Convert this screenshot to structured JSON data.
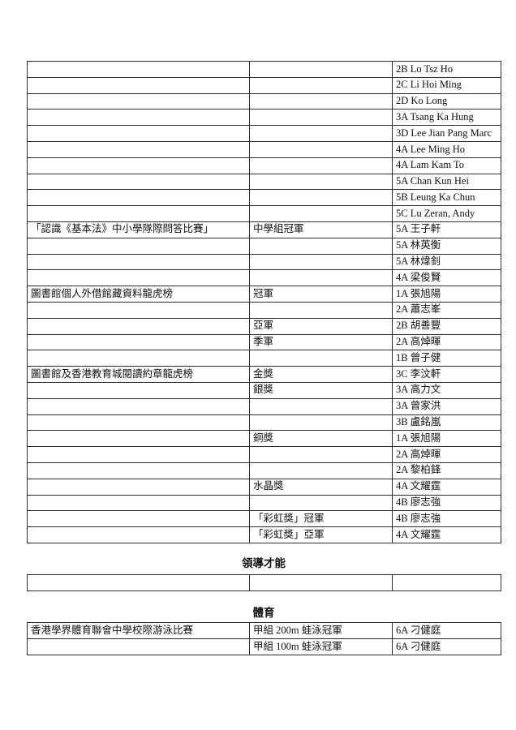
{
  "awards_table": {
    "rows": [
      {
        "activity": "",
        "award": "",
        "student": "2B Lo Tsz Ho"
      },
      {
        "activity": "",
        "award": "",
        "student": "2C Li Hoi Ming"
      },
      {
        "activity": "",
        "award": "",
        "student": "2D Ko Long"
      },
      {
        "activity": "",
        "award": "",
        "student": "3A Tsang Ka Hung"
      },
      {
        "activity": "",
        "award": "",
        "student": "3D Lee Jian Pang Marc"
      },
      {
        "activity": "",
        "award": "",
        "student": "4A Lee Ming Ho"
      },
      {
        "activity": "",
        "award": "",
        "student": "4A Lam Kam To"
      },
      {
        "activity": "",
        "award": "",
        "student": "5A Chan Kun Hei"
      },
      {
        "activity": "",
        "award": "",
        "student": "5B Leung Ka Chun"
      },
      {
        "activity": "",
        "award": "",
        "student": "5C Lu Zeran, Andy"
      },
      {
        "activity": "「認識《基本法》中小學隊際問答比賽」",
        "award": "中學組冠軍",
        "student": "5A 王子軒"
      },
      {
        "activity": "",
        "award": "",
        "student": "5A 林英衡"
      },
      {
        "activity": "",
        "award": "",
        "student": "5A 林煒釗"
      },
      {
        "activity": "",
        "award": "",
        "student": "4A 梁俊賢"
      },
      {
        "activity": "圖書館個人外借館藏資料龍虎榜",
        "award": "冠軍",
        "student": "1A 張旭陽"
      },
      {
        "activity": "",
        "award": "",
        "student": "2A 蕭志峯"
      },
      {
        "activity": "",
        "award": "亞軍",
        "student": "2B 胡善豐"
      },
      {
        "activity": "",
        "award": "季軍",
        "student": "2A 高焯暉"
      },
      {
        "activity": "",
        "award": "",
        "student": "1B 曾子健"
      },
      {
        "activity": "圖書館及香港教育城閱讀約章龍虎榜",
        "award": "金獎",
        "student": "3C 李汶軒"
      },
      {
        "activity": "",
        "award": "銀獎",
        "student": "3A 高力文"
      },
      {
        "activity": "",
        "award": "",
        "student": "3A 曾家洪"
      },
      {
        "activity": "",
        "award": "",
        "student": "3B 盧銘嵐"
      },
      {
        "activity": "",
        "award": "銅獎",
        "student": "1A 張旭陽"
      },
      {
        "activity": "",
        "award": "",
        "student": "2A 高焯暉"
      },
      {
        "activity": "",
        "award": "",
        "student": "2A 黎柏鋒"
      },
      {
        "activity": "",
        "award": "水晶獎",
        "student": "4A 文耀霆"
      },
      {
        "activity": "",
        "award": "",
        "student": "4B 廖志強"
      },
      {
        "activity": "",
        "award": "「彩虹獎」冠軍",
        "student": "4B 廖志強"
      },
      {
        "activity": "",
        "award": "「彩虹獎」亞軍",
        "student": "4A 文耀霆"
      }
    ]
  },
  "leadership": {
    "heading": "領導才能",
    "rows": [
      {
        "activity": "",
        "award": "",
        "student": ""
      }
    ]
  },
  "sports": {
    "heading": "體育",
    "rows": [
      {
        "activity": "香港學界體育聯會中學校際游泳比賽",
        "award": "甲組 200m 蛙泳冠軍",
        "student": "6A 刁健庭"
      },
      {
        "activity": "",
        "award": "甲組 100m 蛙泳冠軍",
        "student": "6A 刁健庭"
      }
    ]
  }
}
